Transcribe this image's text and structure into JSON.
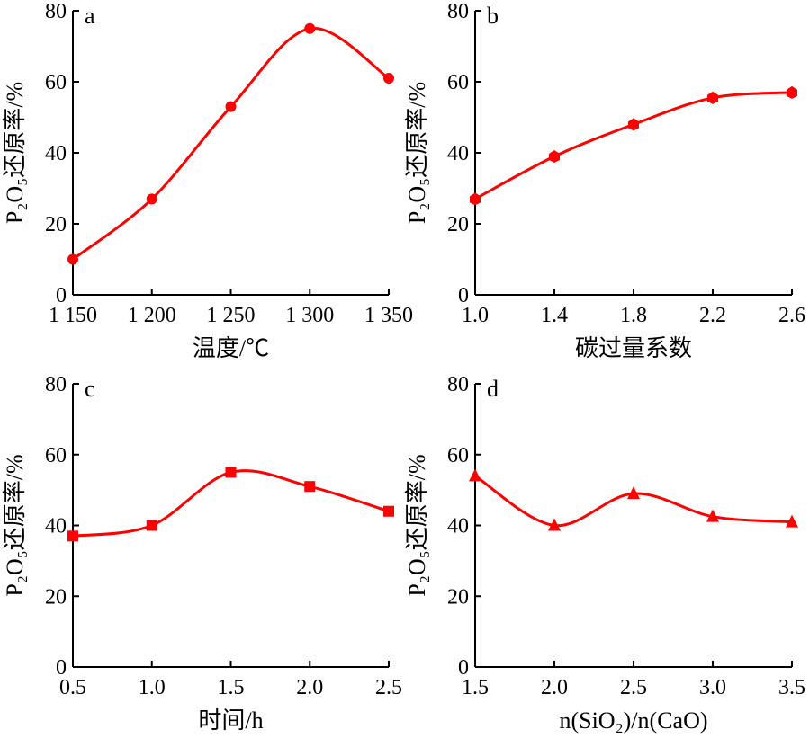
{
  "figure": {
    "panels": [
      {
        "letter": "a",
        "xlabel": "温度/℃",
        "ylabel": "P₂O₅还原率/%"
      },
      {
        "letter": "b",
        "xlabel": "碳过量系数",
        "ylabel": "P₂O₅还原率/%"
      },
      {
        "letter": "c",
        "xlabel": "时间/h",
        "ylabel": "P₂O₅还原率/%"
      },
      {
        "letter": "d",
        "xlabel": "n(SiO₂)/n(CaO)",
        "ylabel": "P₂O₅还原率/%"
      }
    ]
  },
  "chart_data": [
    {
      "type": "line",
      "panel": "a",
      "xlabel": "温度/℃",
      "ylabel": "P₂O₅还原率/%",
      "x": [
        1150,
        1200,
        1250,
        1300,
        1350
      ],
      "values": [
        10,
        27,
        53,
        75,
        61
      ],
      "xlim": [
        1150,
        1350
      ],
      "ylim": [
        0,
        80
      ],
      "xticks": [
        "1 150",
        "1 200",
        "1 250",
        "1 300",
        "1 350"
      ],
      "yticks": [
        "0",
        "20",
        "40",
        "60",
        "80"
      ],
      "marker": "circle",
      "color": "#ff0000"
    },
    {
      "type": "line",
      "panel": "b",
      "xlabel": "碳过量系数",
      "ylabel": "P₂O₅还原率/%",
      "x": [
        1.0,
        1.4,
        1.8,
        2.2,
        2.6
      ],
      "values": [
        27,
        39,
        48,
        55.5,
        57
      ],
      "xlim": [
        1.0,
        2.6
      ],
      "ylim": [
        0,
        80
      ],
      "xticks": [
        "1.0",
        "1.4",
        "1.8",
        "2.2",
        "2.6"
      ],
      "yticks": [
        "0",
        "20",
        "40",
        "60",
        "80"
      ],
      "marker": "diamond",
      "color": "#ff0000"
    },
    {
      "type": "line",
      "panel": "c",
      "xlabel": "时间/h",
      "ylabel": "P₂O₅还原率/%",
      "x": [
        0.5,
        1.0,
        1.5,
        2.0,
        2.5
      ],
      "values": [
        37,
        40,
        55,
        51,
        44
      ],
      "xlim": [
        0.5,
        2.5
      ],
      "ylim": [
        0,
        80
      ],
      "xticks": [
        "0.5",
        "1.0",
        "1.5",
        "2.0",
        "2.5"
      ],
      "yticks": [
        "0",
        "20",
        "40",
        "60",
        "80"
      ],
      "marker": "square",
      "color": "#ff0000"
    },
    {
      "type": "line",
      "panel": "d",
      "xlabel": "n(SiO₂)/n(CaO)",
      "ylabel": "P₂O₅还原率/%",
      "x": [
        1.5,
        2.0,
        2.5,
        3.0,
        3.5
      ],
      "values": [
        54,
        40,
        49,
        42.5,
        41
      ],
      "xlim": [
        1.5,
        3.5
      ],
      "ylim": [
        0,
        80
      ],
      "xticks": [
        "1.5",
        "2.0",
        "2.5",
        "3.0",
        "3.5"
      ],
      "yticks": [
        "0",
        "20",
        "40",
        "60",
        "80"
      ],
      "marker": "triangle",
      "color": "#ff0000"
    }
  ]
}
